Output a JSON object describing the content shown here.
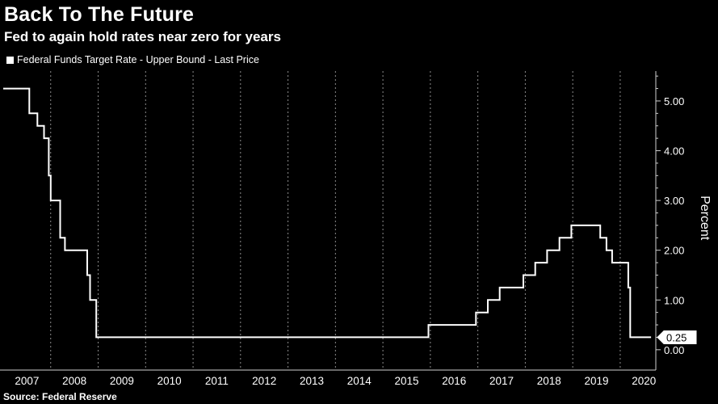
{
  "title": "Back To The Future",
  "subtitle": "Fed to again hold rates near zero for years",
  "source": "Source: Federal Reserve",
  "chart_data": {
    "type": "line",
    "title": "Back To The Future",
    "subtitle": "Fed to again hold rates near zero for years",
    "legend": [
      "Federal Funds Target Rate - Upper Bound - Last Price"
    ],
    "ylabel": "Percent",
    "xlabel": "",
    "ylim": [
      -0.1,
      5.6
    ],
    "xlim": [
      2007.0,
      2020.75
    ],
    "y_ticks": [
      0.0,
      1.0,
      2.0,
      3.0,
      4.0,
      5.0
    ],
    "y_tick_labels": [
      "0.00",
      "1.00",
      "2.00",
      "3.00",
      "4.00",
      "5.00"
    ],
    "x_ticks": [
      "2007",
      "2008",
      "2009",
      "2010",
      "2011",
      "2012",
      "2013",
      "2014",
      "2015",
      "2016",
      "2017",
      "2018",
      "2019",
      "2020"
    ],
    "last_value_label": "0.25",
    "grid": "vertical dashed",
    "colors": {
      "line": "#ffffff",
      "grid": "#8c8c8c",
      "background": "#000000"
    },
    "series": [
      {
        "name": "Federal Funds Target Rate - Upper Bound - Last Price",
        "step": true,
        "points": [
          [
            2007.0,
            5.25
          ],
          [
            2007.55,
            5.25
          ],
          [
            2007.55,
            4.75
          ],
          [
            2007.72,
            4.75
          ],
          [
            2007.72,
            4.5
          ],
          [
            2007.86,
            4.5
          ],
          [
            2007.86,
            4.25
          ],
          [
            2007.96,
            4.25
          ],
          [
            2007.96,
            3.5
          ],
          [
            2008.0,
            3.5
          ],
          [
            2008.0,
            3.0
          ],
          [
            2008.2,
            3.0
          ],
          [
            2008.2,
            2.25
          ],
          [
            2008.3,
            2.25
          ],
          [
            2008.3,
            2.0
          ],
          [
            2008.77,
            2.0
          ],
          [
            2008.77,
            1.5
          ],
          [
            2008.83,
            1.5
          ],
          [
            2008.83,
            1.0
          ],
          [
            2008.96,
            1.0
          ],
          [
            2008.96,
            0.25
          ],
          [
            2015.96,
            0.25
          ],
          [
            2015.96,
            0.5
          ],
          [
            2016.96,
            0.5
          ],
          [
            2016.96,
            0.75
          ],
          [
            2017.21,
            0.75
          ],
          [
            2017.21,
            1.0
          ],
          [
            2017.46,
            1.0
          ],
          [
            2017.46,
            1.25
          ],
          [
            2017.96,
            1.25
          ],
          [
            2017.96,
            1.5
          ],
          [
            2018.21,
            1.5
          ],
          [
            2018.21,
            1.75
          ],
          [
            2018.46,
            1.75
          ],
          [
            2018.46,
            2.0
          ],
          [
            2018.72,
            2.0
          ],
          [
            2018.72,
            2.25
          ],
          [
            2018.97,
            2.25
          ],
          [
            2018.97,
            2.5
          ],
          [
            2019.58,
            2.5
          ],
          [
            2019.58,
            2.25
          ],
          [
            2019.71,
            2.25
          ],
          [
            2019.71,
            2.0
          ],
          [
            2019.83,
            2.0
          ],
          [
            2019.83,
            1.75
          ],
          [
            2020.17,
            1.75
          ],
          [
            2020.17,
            1.25
          ],
          [
            2020.21,
            1.25
          ],
          [
            2020.21,
            0.25
          ],
          [
            2020.65,
            0.25
          ]
        ]
      }
    ]
  }
}
